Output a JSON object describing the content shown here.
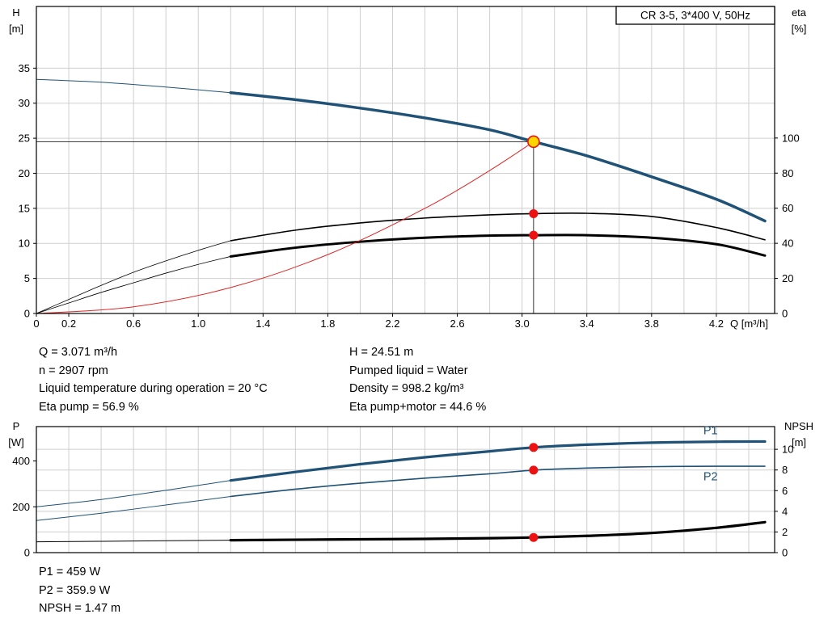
{
  "colors": {
    "curve_blue": "#1f5276",
    "curve_black": "#000000",
    "curve_red": "#e02424",
    "dot_red": "#ee1111",
    "duty_yellow": "#ffd500",
    "grid": "#cfcfcf"
  },
  "info_top": {
    "left": [
      "Q = 3.071 m³/h",
      "n = 2907 rpm",
      "Liquid temperature during operation = 20 °C",
      "Eta pump = 56.9 %"
    ],
    "right": [
      "H = 24.51 m",
      "Pumped liquid = Water",
      "Density = 998.2 kg/m³",
      "Eta pump+motor = 44.6 %"
    ]
  },
  "info_bottom": [
    "P1 = 459 W",
    "P2 = 359.9 W",
    "NPSH = 1.47 m"
  ],
  "chart_data": [
    {
      "type": "line",
      "title": "CR 3-5, 3*400 V, 50Hz",
      "xlabel": "Q [m³/h]",
      "ylabel_left": [
        "H",
        "[m]"
      ],
      "ylabel_right": [
        "eta",
        "[%]"
      ],
      "xlim": [
        0,
        4.56
      ],
      "ylim_left": [
        0,
        43.8
      ],
      "ylim_right": [
        0,
        175
      ],
      "grid_x_step": 0.2,
      "grid_y_axis": "left",
      "xticks": [
        [
          0,
          "0"
        ],
        [
          0.2,
          "0.2"
        ],
        [
          0.6,
          "0.6"
        ],
        [
          1.0,
          "1.0"
        ],
        [
          1.4,
          "1.4"
        ],
        [
          1.8,
          "1.8"
        ],
        [
          2.2,
          "2.2"
        ],
        [
          2.6,
          "2.6"
        ],
        [
          3.0,
          "3.0"
        ],
        [
          3.4,
          "3.4"
        ],
        [
          3.8,
          "3.8"
        ],
        [
          4.2,
          "4.2"
        ]
      ],
      "yticks_left": [
        0,
        5,
        10,
        15,
        20,
        25,
        30,
        35
      ],
      "yticks_right": [
        0,
        20,
        40,
        60,
        80,
        100
      ],
      "series": [
        {
          "name": "head-curve-full-range",
          "axis": "left",
          "color": "#1f5276",
          "width": 1,
          "points": [
            [
              0,
              33.4
            ],
            [
              0.4,
              33.0
            ],
            [
              0.8,
              32.3
            ],
            [
              1.2,
              31.5
            ]
          ]
        },
        {
          "name": "head-curve",
          "axis": "left",
          "color": "#1f5276",
          "width": 3.5,
          "points": [
            [
              1.2,
              31.5
            ],
            [
              1.6,
              30.5
            ],
            [
              2.0,
              29.3
            ],
            [
              2.4,
              27.9
            ],
            [
              2.8,
              26.2
            ],
            [
              3.071,
              24.51
            ],
            [
              3.4,
              22.5
            ],
            [
              3.8,
              19.5
            ],
            [
              4.2,
              16.3
            ],
            [
              4.5,
              13.2
            ]
          ]
        },
        {
          "name": "eta-pump-curve-low",
          "axis": "right",
          "color": "#000000",
          "width": 0.8,
          "points": [
            [
              0,
              0
            ],
            [
              0.2,
              8
            ],
            [
              0.4,
              16
            ],
            [
              0.6,
              23.5
            ],
            [
              0.8,
              30
            ],
            [
              1.0,
              36
            ],
            [
              1.2,
              41.5
            ]
          ]
        },
        {
          "name": "eta-pump-curve",
          "axis": "right",
          "color": "#000000",
          "width": 1.6,
          "points": [
            [
              1.2,
              41.5
            ],
            [
              1.6,
              47.5
            ],
            [
              2.0,
              51.6
            ],
            [
              2.4,
              54.4
            ],
            [
              2.8,
              56.2
            ],
            [
              3.071,
              56.9
            ],
            [
              3.4,
              57.1
            ],
            [
              3.8,
              55.3
            ],
            [
              4.2,
              49
            ],
            [
              4.5,
              42
            ]
          ]
        },
        {
          "name": "eta-pump-motor-curve-low",
          "axis": "right",
          "color": "#000000",
          "width": 0.8,
          "points": [
            [
              0,
              0
            ],
            [
              0.2,
              6
            ],
            [
              0.4,
              12
            ],
            [
              0.6,
              17.5
            ],
            [
              0.8,
              23
            ],
            [
              1.0,
              28
            ],
            [
              1.2,
              32.5
            ]
          ]
        },
        {
          "name": "eta-pump-motor-curve",
          "axis": "right",
          "color": "#000000",
          "width": 3,
          "points": [
            [
              1.2,
              32.5
            ],
            [
              1.6,
              37.5
            ],
            [
              2.0,
              40.9
            ],
            [
              2.4,
              43.2
            ],
            [
              2.8,
              44.4
            ],
            [
              3.071,
              44.6
            ],
            [
              3.4,
              44.6
            ],
            [
              3.8,
              43.2
            ],
            [
              4.2,
              39.5
            ],
            [
              4.5,
              33
            ]
          ]
        },
        {
          "name": "system-curve",
          "axis": "left",
          "color": "#e02424",
          "width": 1,
          "points": [
            [
              0,
              0
            ],
            [
              0.6,
              0.95
            ],
            [
              1.2,
              3.7
            ],
            [
              1.8,
              8.4
            ],
            [
              2.4,
              15.0
            ],
            [
              2.8,
              20.4
            ],
            [
              3.071,
              24.51
            ]
          ]
        },
        {
          "name": "duty-hline",
          "axis": "left",
          "color": "#000000",
          "width": 0.8,
          "points": [
            [
              0,
              24.51
            ],
            [
              3.071,
              24.51
            ]
          ]
        },
        {
          "name": "duty-vline",
          "axis": "left",
          "color": "#000000",
          "width": 0.8,
          "points": [
            [
              3.071,
              0
            ],
            [
              3.071,
              24.51
            ]
          ]
        }
      ],
      "markers": [
        {
          "name": "duty-point",
          "axis": "left",
          "x": 3.071,
          "y": 24.51,
          "r": 7,
          "fill": "#ffd500",
          "stroke": "#ee1111",
          "draggable": true
        },
        {
          "name": "eta-pump-point",
          "axis": "right",
          "x": 3.071,
          "y": 56.9,
          "r": 5.5,
          "fill": "#ee1111"
        },
        {
          "name": "eta-pump-motor-point",
          "axis": "right",
          "x": 3.071,
          "y": 44.6,
          "r": 5.5,
          "fill": "#ee1111"
        }
      ]
    },
    {
      "type": "line",
      "title": "",
      "xlabel": "",
      "ylabel_left": [
        "P",
        "[W]"
      ],
      "ylabel_right": [
        "NPSH",
        "[m]"
      ],
      "xlim": [
        0,
        4.56
      ],
      "ylim_left": [
        0,
        550
      ],
      "ylim_right": [
        0,
        12.2
      ],
      "grid_x_step": 0.2,
      "grid_y_axis": "right",
      "xticks": [],
      "yticks_left": [
        0,
        200,
        400
      ],
      "yticks_right": [
        0,
        2,
        4,
        6,
        8,
        10
      ],
      "series": [
        {
          "name": "p1-curve-low",
          "axis": "left",
          "color": "#1f5276",
          "width": 1,
          "points": [
            [
              0,
              200
            ],
            [
              0.4,
              232
            ],
            [
              0.8,
              272
            ],
            [
              1.2,
              315
            ]
          ]
        },
        {
          "name": "p1-curve",
          "axis": "left",
          "color": "#1f5276",
          "width": 3.2,
          "points": [
            [
              1.2,
              315
            ],
            [
              1.6,
              352
            ],
            [
              2.0,
              386
            ],
            [
              2.4,
              416
            ],
            [
              2.8,
              442
            ],
            [
              3.071,
              459
            ],
            [
              3.4,
              471
            ],
            [
              3.8,
              480
            ],
            [
              4.2,
              484
            ],
            [
              4.5,
              485
            ]
          ]
        },
        {
          "name": "p2-curve-low",
          "axis": "left",
          "color": "#1f5276",
          "width": 1,
          "points": [
            [
              0,
              140
            ],
            [
              0.4,
              172
            ],
            [
              0.8,
              208
            ],
            [
              1.2,
              245
            ]
          ]
        },
        {
          "name": "p2-curve",
          "axis": "left",
          "color": "#1f5276",
          "width": 1.6,
          "points": [
            [
              1.2,
              245
            ],
            [
              1.6,
              277
            ],
            [
              2.0,
              303
            ],
            [
              2.4,
              325
            ],
            [
              2.8,
              344
            ],
            [
              3.071,
              359.9
            ],
            [
              3.4,
              369
            ],
            [
              3.8,
              375
            ],
            [
              4.2,
              377
            ],
            [
              4.5,
              377
            ]
          ]
        },
        {
          "name": "npsh-curve-low",
          "axis": "right",
          "color": "#000000",
          "width": 1,
          "points": [
            [
              0,
              1.05
            ],
            [
              0.6,
              1.12
            ],
            [
              1.2,
              1.2
            ]
          ]
        },
        {
          "name": "npsh-curve",
          "axis": "right",
          "color": "#000000",
          "width": 3.2,
          "points": [
            [
              1.2,
              1.2
            ],
            [
              1.8,
              1.27
            ],
            [
              2.4,
              1.33
            ],
            [
              2.8,
              1.4
            ],
            [
              3.071,
              1.47
            ],
            [
              3.4,
              1.62
            ],
            [
              3.8,
              1.9
            ],
            [
              4.2,
              2.4
            ],
            [
              4.5,
              2.95
            ]
          ]
        }
      ],
      "markers": [
        {
          "name": "p1-point",
          "axis": "left",
          "x": 3.071,
          "y": 459,
          "r": 5.5,
          "fill": "#ee1111"
        },
        {
          "name": "p2-point",
          "axis": "left",
          "x": 3.071,
          "y": 359.9,
          "r": 5.5,
          "fill": "#ee1111"
        },
        {
          "name": "npsh-point",
          "axis": "right",
          "x": 3.071,
          "y": 1.47,
          "r": 5.5,
          "fill": "#ee1111"
        }
      ],
      "labels": [
        {
          "text": "P1",
          "x": 4.12,
          "y": 516,
          "axis": "left",
          "color": "#1f5276"
        },
        {
          "text": "P2",
          "x": 4.12,
          "y": 316,
          "axis": "left",
          "color": "#1f5276"
        }
      ]
    }
  ]
}
